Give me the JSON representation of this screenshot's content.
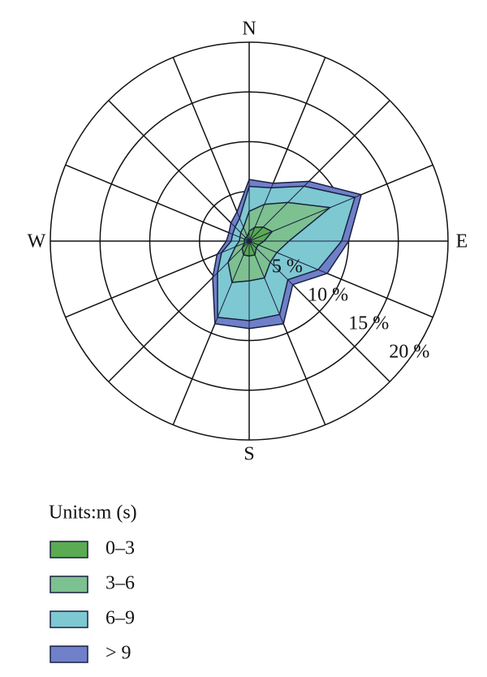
{
  "chart_data": {
    "type": "windrose",
    "categories": [
      "N",
      null,
      null,
      null,
      "E",
      null,
      null,
      null,
      "S",
      null,
      null,
      null,
      "W",
      null,
      null,
      null
    ],
    "rlim": [
      0,
      20
    ],
    "rticks": [
      {
        "value": 5,
        "label": "5 %"
      },
      {
        "value": 10,
        "label": "10 %"
      },
      {
        "value": 15,
        "label": "15 %"
      },
      {
        "value": 20,
        "label": "20 %"
      }
    ],
    "legend_title": "Units:m (s)",
    "series": [
      {
        "name": "0–3",
        "color": "#5aab52",
        "values": [
          1,
          1.5,
          2,
          2.5,
          1.5,
          1,
          1,
          1.5,
          1.5,
          1.5,
          1,
          0.5,
          0.5,
          0.5,
          0.5,
          0.5
        ]
      },
      {
        "name": "3–6",
        "color": "#7dc190",
        "values": [
          2,
          2.5,
          3.5,
          6.3,
          2.5,
          2,
          2,
          2.5,
          2.5,
          3,
          2,
          1,
          0.5,
          0.5,
          0.7,
          1
        ]
      },
      {
        "name": "6–9",
        "color": "#7ec8d2",
        "values": [
          2.5,
          1.8,
          2.3,
          2.7,
          5.3,
          4.5,
          2.5,
          4,
          4,
          3.8,
          1.5,
          1.5,
          0.8,
          0.8,
          0.8,
          1
        ]
      },
      {
        "name": "> 9",
        "color": "#6f80c9",
        "values": [
          0.7,
          0.5,
          0.7,
          0.7,
          0.7,
          1,
          0.7,
          1,
          0.8,
          0.7,
          0.7,
          0.5,
          0.5,
          0.4,
          0.6,
          0.7
        ]
      }
    ]
  }
}
